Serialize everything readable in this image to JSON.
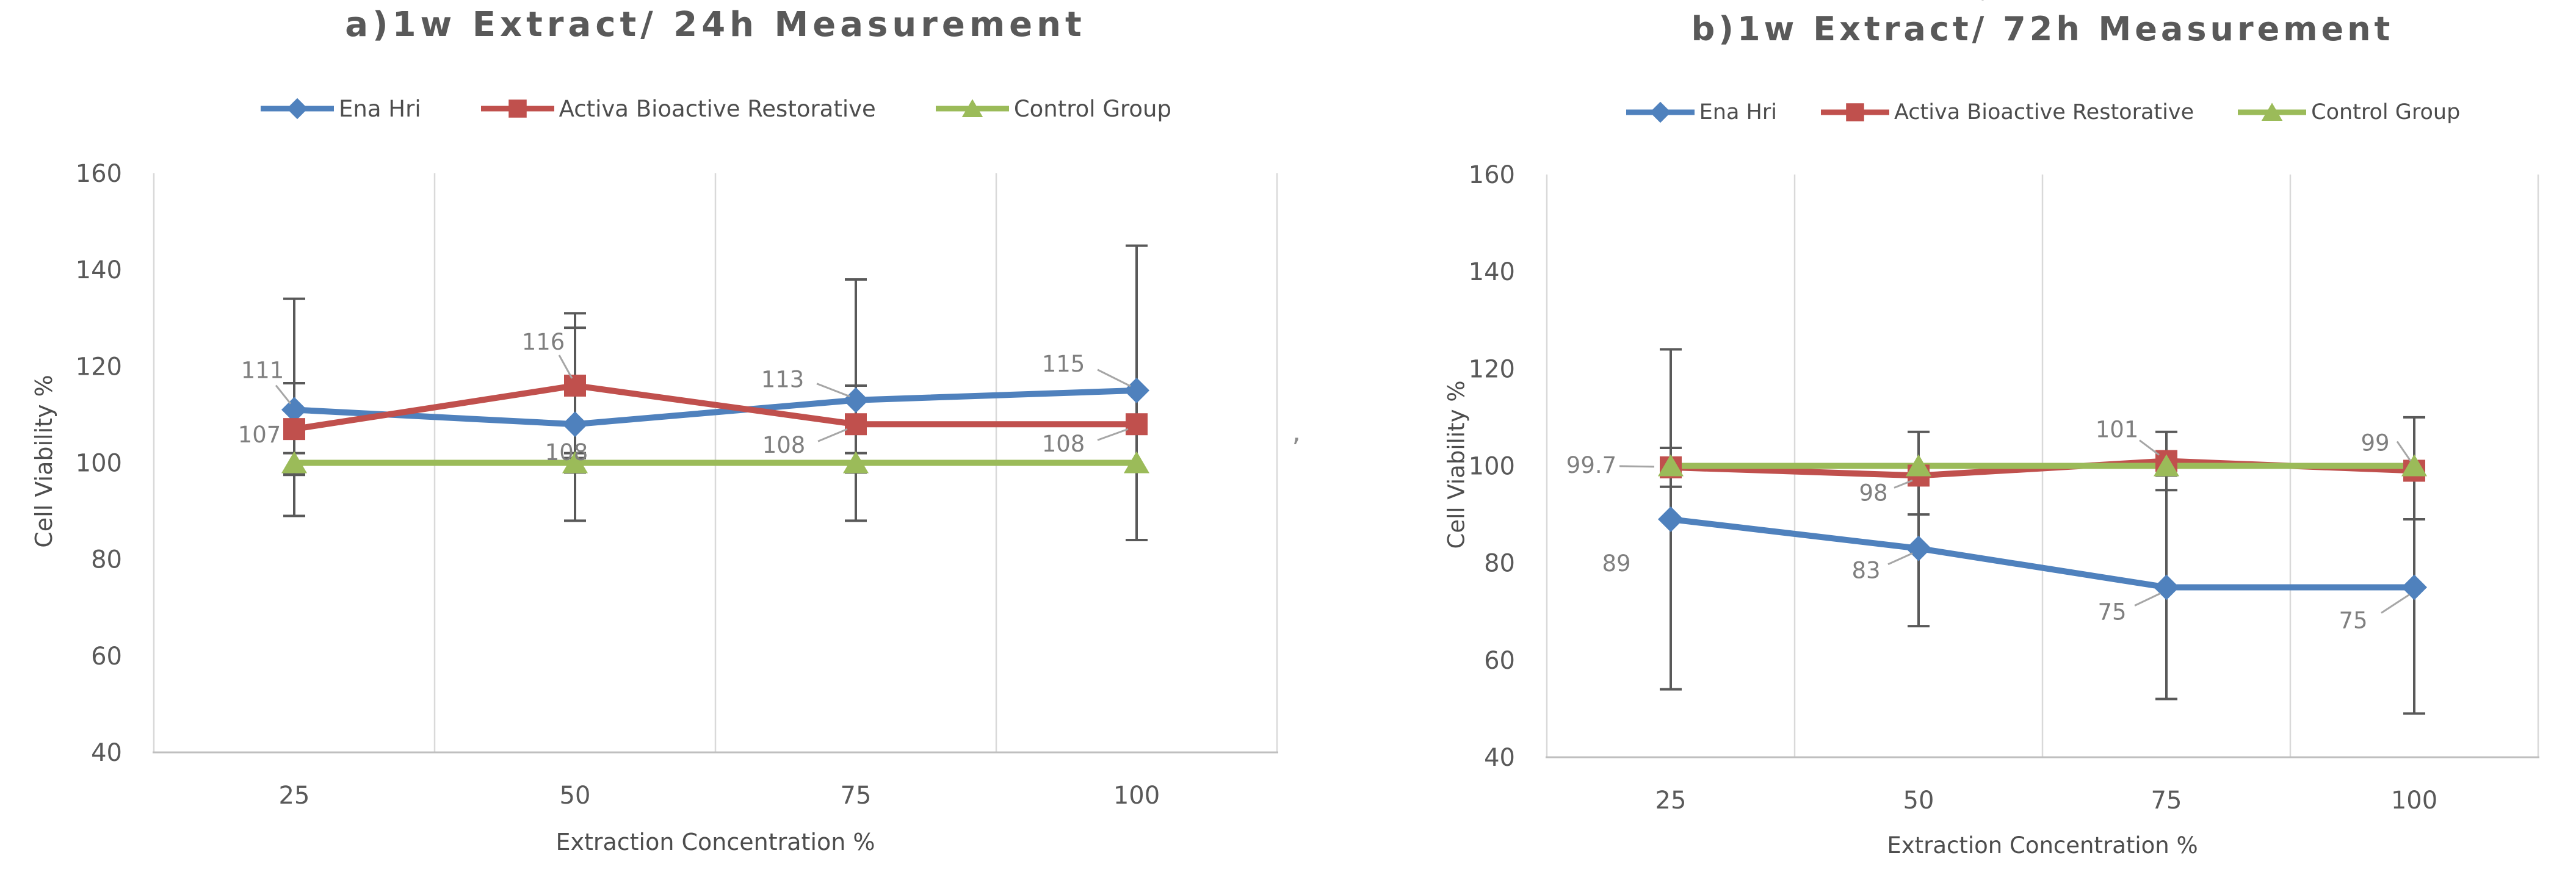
{
  "figure": {
    "background": "#ffffff",
    "text_colors": {
      "title": "#595959",
      "ticks": "#595959",
      "data_labels": "#7f7f7f",
      "legend": "#4d4d4d"
    },
    "line_colors": {
      "gridline": "#d9d9d9",
      "axis_line": "#bfbfbf",
      "error_bar": "#595959",
      "leader": "#a6a6a6"
    }
  },
  "artifacts": {
    "right_of_chart_a": "’",
    "above_chart_b": "˅"
  },
  "chart_data": [
    {
      "type": "line",
      "title": "a)1w Extract/ 24h Measurement",
      "xlabel": "Extraction Concentration %",
      "ylabel": "Cell Viability %",
      "categories": [
        "25",
        "50",
        "75",
        "100"
      ],
      "ylim": [
        40,
        160
      ],
      "yticks": [
        160,
        140,
        120,
        100,
        80,
        60,
        40
      ],
      "grid": "vertical-only",
      "legend_position": "top",
      "series": [
        {
          "name": "Ena Hri",
          "color": "#4F81BD",
          "marker": "diamond",
          "values": [
            111,
            108,
            113,
            115
          ],
          "err_plus": [
            23,
            20,
            25,
            30
          ],
          "err_minus": [
            22,
            20,
            25,
            31
          ],
          "labels": [
            {
              "text": "111",
              "dx": -52,
              "dy": -65,
              "leader": [
                [
                  -30,
                  -40
                ],
                [
                  -6,
                  -10
                ]
              ]
            },
            {
              "text": "108",
              "dx": -14,
              "dy": 46,
              "leader": null
            },
            {
              "text": "113",
              "dx": -120,
              "dy": -34,
              "leader": [
                [
                  -64,
                  -27
                ],
                [
                  -10,
                  -6
                ]
              ]
            },
            {
              "text": "115",
              "dx": -120,
              "dy": -44,
              "leader": [
                [
                  -64,
                  -34
                ],
                [
                  -10,
                  -7
                ]
              ]
            }
          ]
        },
        {
          "name": "Activa Bioactive Restorative",
          "color": "#C0504D",
          "marker": "square",
          "values": [
            107,
            116,
            108,
            108
          ],
          "err_plus": [
            9.5,
            15,
            8,
            0
          ],
          "err_minus": [
            9.5,
            15,
            8,
            0
          ],
          "labels": [
            {
              "text": "107",
              "dx": -57,
              "dy": 9,
              "leader": null
            },
            {
              "text": "116",
              "dx": -52,
              "dy": -72,
              "leader": [
                [
                  -26,
                  -50
                ],
                [
                  -5,
                  -12
                ]
              ]
            },
            {
              "text": "108",
              "dx": -118,
              "dy": 34,
              "leader": [
                [
                  -62,
                  28
                ],
                [
                  -14,
                  8
                ]
              ]
            },
            {
              "text": "108",
              "dx": -120,
              "dy": 32,
              "leader": [
                [
                  -64,
                  26
                ],
                [
                  -14,
                  8
                ]
              ]
            }
          ]
        },
        {
          "name": "Control Group",
          "color": "#9BBB59",
          "marker": "triangle",
          "values": [
            100,
            100,
            100,
            100
          ],
          "err_plus": [
            2,
            2,
            2,
            0
          ],
          "err_minus": [
            2,
            2,
            2,
            0
          ],
          "labels": [
            null,
            null,
            null,
            null
          ]
        }
      ]
    },
    {
      "type": "line",
      "title": "b)1w Extract/ 72h Measurement",
      "xlabel": "Extraction Concentration %",
      "ylabel": "Cell Viability %",
      "categories": [
        "25",
        "50",
        "75",
        "100"
      ],
      "ylim": [
        40,
        160
      ],
      "yticks": [
        160,
        140,
        120,
        100,
        80,
        60,
        40
      ],
      "grid": "vertical-only",
      "legend_position": "top",
      "series": [
        {
          "name": "Ena Hri",
          "color": "#4F81BD",
          "marker": "diamond",
          "values": [
            89,
            83,
            75,
            75
          ],
          "err_plus": [
            35,
            16,
            23,
            26
          ],
          "err_minus": [
            35,
            16,
            23,
            26
          ],
          "labels": [
            {
              "text": "89",
              "dx": -89,
              "dy": 72,
              "leader": null
            },
            {
              "text": "83",
              "dx": -86,
              "dy": 36,
              "leader": [
                [
                  -50,
                  26
                ],
                [
                  -10,
                  8
                ]
              ]
            },
            {
              "text": "75",
              "dx": -89,
              "dy": 40,
              "leader": [
                [
                  -52,
                  30
                ],
                [
                  -10,
                  10
                ]
              ]
            },
            {
              "text": "75",
              "dx": -100,
              "dy": 54,
              "leader": [
                [
                  -54,
                  42
                ],
                [
                  -8,
                  12
                ]
              ]
            }
          ]
        },
        {
          "name": "Activa Bioactive Restorative",
          "color": "#C0504D",
          "marker": "square",
          "values": [
            99.7,
            98,
            101,
            99
          ],
          "err_plus": [
            4,
            9,
            6,
            11
          ],
          "err_minus": [
            4,
            8,
            6,
            10
          ],
          "labels": [
            {
              "text": "99.7",
              "dx": -130,
              "dy": -4,
              "leader": [
                [
                  -84,
                  -2
                ],
                [
                  -27,
                  -1
                ]
              ]
            },
            {
              "text": "98",
              "dx": -74,
              "dy": 28,
              "leader": [
                [
                  -40,
                  20
                ],
                [
                  -10,
                  8
                ]
              ]
            },
            {
              "text": "101",
              "dx": -81,
              "dy": -52,
              "leader": [
                [
                  -44,
                  -34
                ],
                [
                  -12,
                  -10
                ]
              ]
            },
            {
              "text": "99",
              "dx": -64,
              "dy": -46,
              "leader": [
                [
                  -28,
                  -48
                ],
                [
                  -6,
                  -16
                ]
              ]
            }
          ]
        },
        {
          "name": "Control Group",
          "color": "#9BBB59",
          "marker": "triangle",
          "values": [
            100,
            100,
            100,
            100
          ],
          "err_plus": [
            0,
            0,
            0,
            0
          ],
          "err_minus": [
            0,
            0,
            0,
            0
          ],
          "labels": [
            null,
            null,
            null,
            null
          ]
        }
      ]
    }
  ]
}
